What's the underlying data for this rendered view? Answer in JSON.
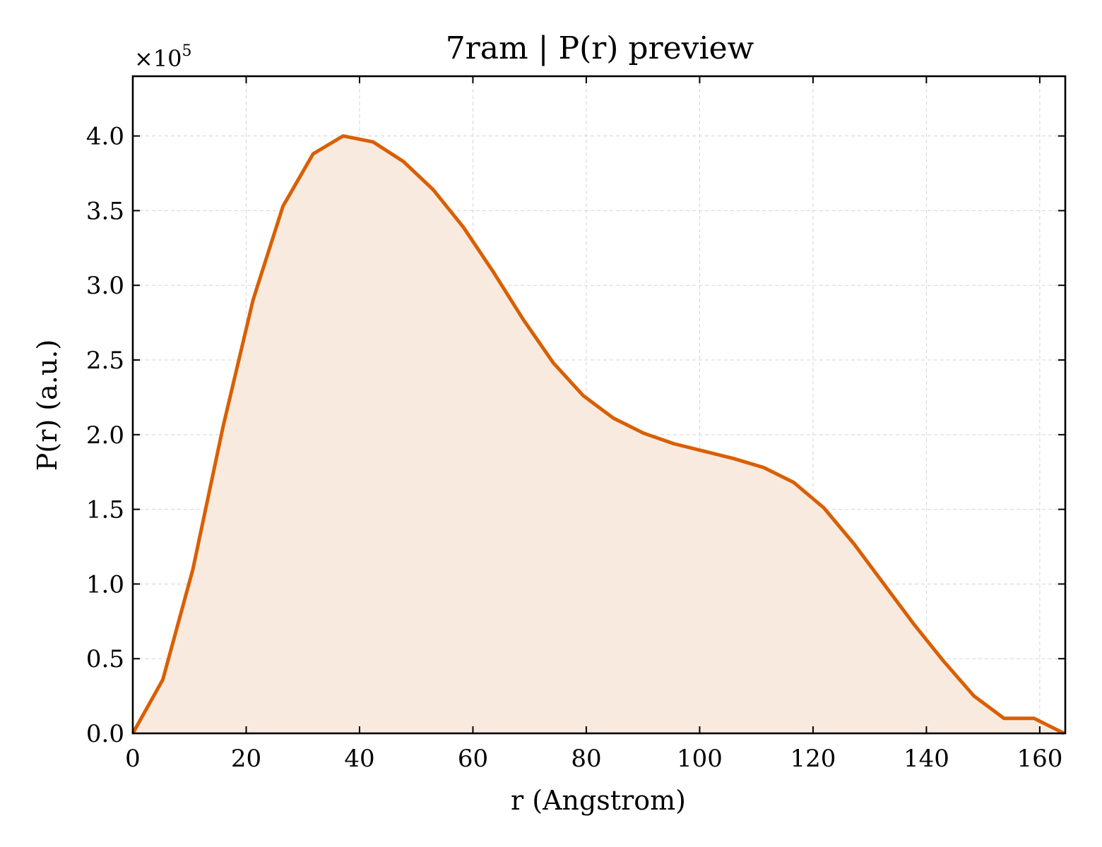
{
  "chart_data": {
    "type": "area",
    "title": "7ram | P(r) preview",
    "xlabel": "r (Angstrom)",
    "ylabel": "P(r) (a.u.)",
    "y_offset_label": "×10",
    "y_offset_exponent": "5",
    "y_scale_factor": 100000,
    "xlim": [
      0,
      164.5
    ],
    "ylim": [
      0,
      4.4
    ],
    "x_ticks": [
      0,
      20,
      40,
      60,
      80,
      100,
      120,
      140,
      160
    ],
    "y_ticks": [
      "0.0",
      "0.5",
      "1.0",
      "1.5",
      "2.0",
      "2.5",
      "3.0",
      "3.5",
      "4.0"
    ],
    "grid": true,
    "line_color": "#d95f02",
    "fill_color": "#f9eadf",
    "series": [
      {
        "x": [
          0,
          5.3,
          10.6,
          15.9,
          21.2,
          26.5,
          31.8,
          37.1,
          42.4,
          47.7,
          53.0,
          58.3,
          63.6,
          68.9,
          74.2,
          79.5,
          84.8,
          90.1,
          95.4,
          100.7,
          106.0,
          111.3,
          116.6,
          121.9,
          127.2,
          132.5,
          137.8,
          143.1,
          148.4,
          153.7,
          159.0,
          164.3
        ],
        "y": [
          0.0,
          0.36,
          1.1,
          2.05,
          2.9,
          3.53,
          3.88,
          4.0,
          3.96,
          3.83,
          3.64,
          3.39,
          3.09,
          2.77,
          2.48,
          2.26,
          2.11,
          2.01,
          1.94,
          1.89,
          1.84,
          1.78,
          1.68,
          1.51,
          1.27,
          1.0,
          0.73,
          0.48,
          0.25,
          0.1,
          0.1,
          0.0
        ]
      }
    ]
  }
}
